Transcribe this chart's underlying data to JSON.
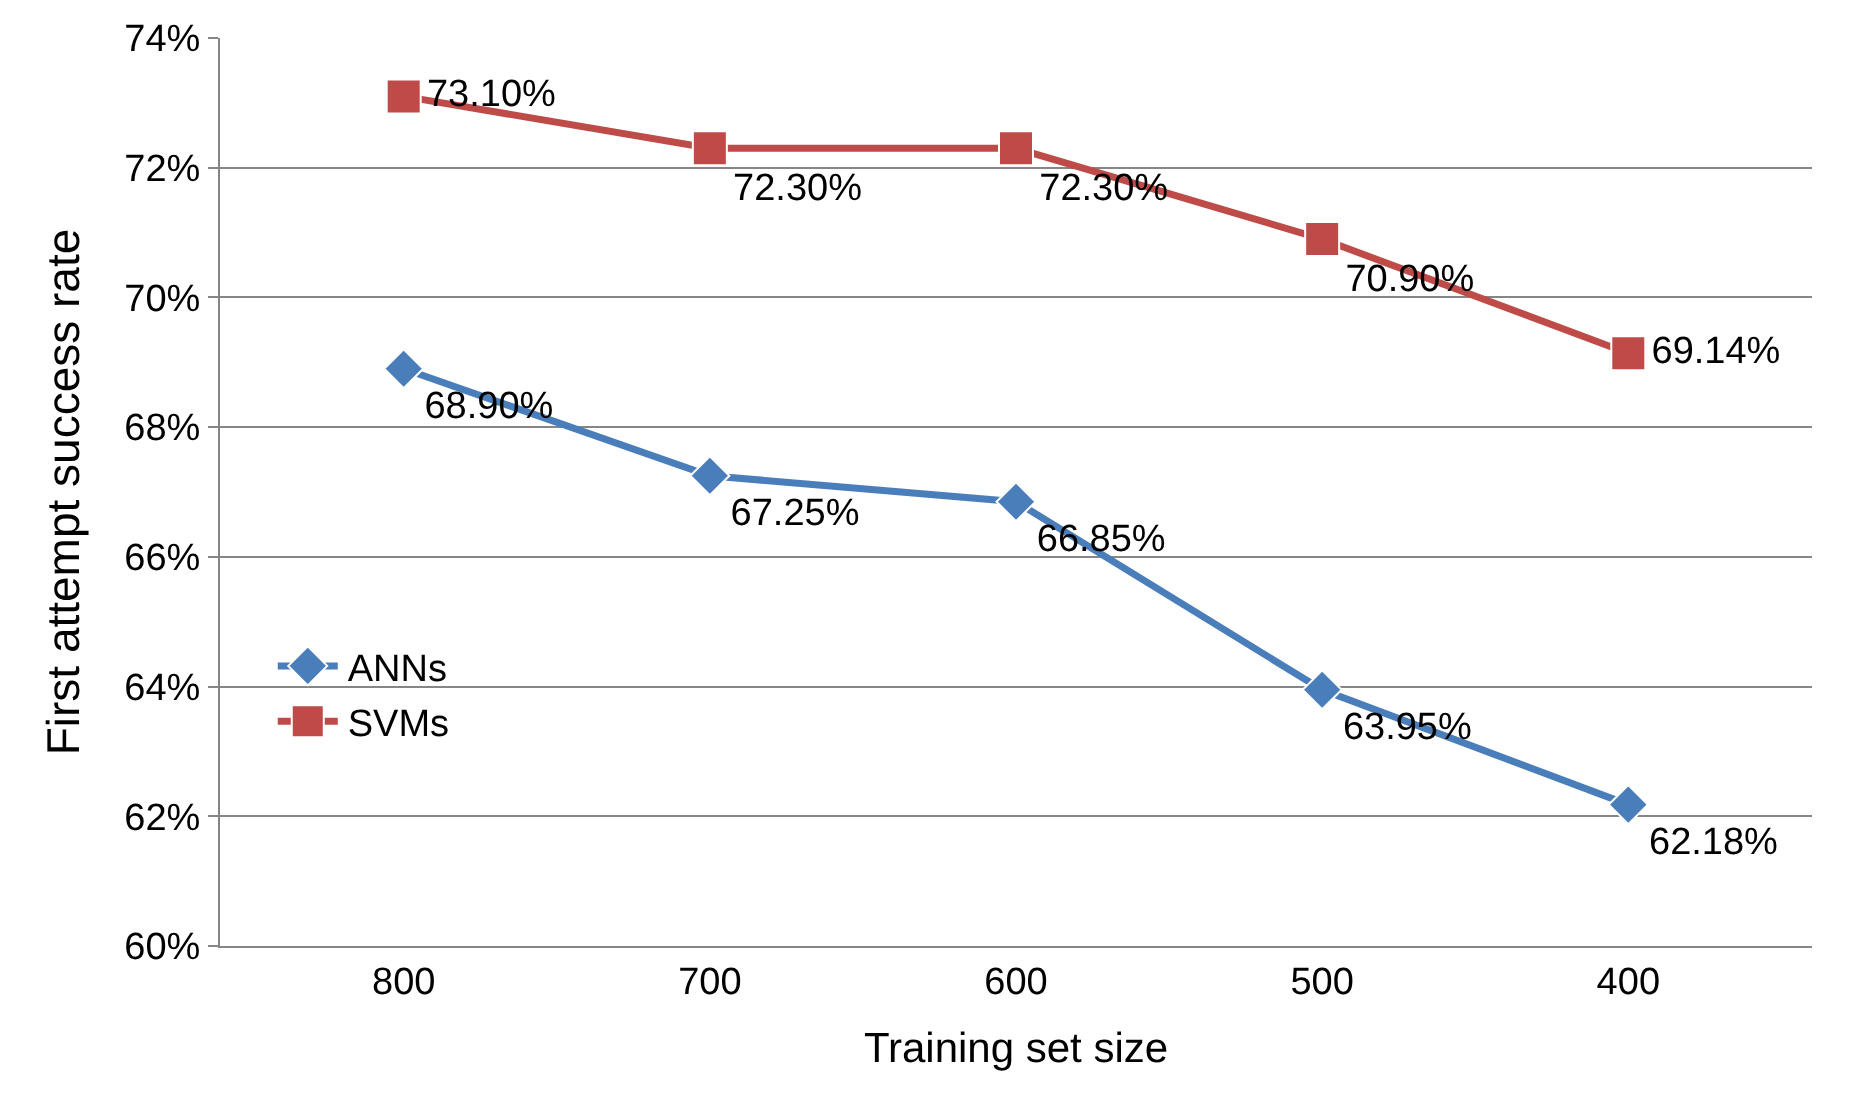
{
  "chart_data": {
    "type": "line",
    "xlabel": "Training set size",
    "ylabel": "First attempt success rate",
    "categories": [
      "800",
      "700",
      "600",
      "500",
      "400"
    ],
    "series": [
      {
        "name": "ANNs",
        "color": "#4a7ebb",
        "marker": "diamond",
        "values": [
          68.9,
          67.25,
          66.85,
          63.95,
          62.18
        ],
        "value_labels": [
          "68.90%",
          "67.25%",
          "66.85%",
          "63.95%",
          "62.18%"
        ]
      },
      {
        "name": "SVMs",
        "color": "#be4b48",
        "marker": "square",
        "values": [
          73.1,
          72.3,
          72.3,
          70.9,
          69.14
        ],
        "value_labels": [
          "73.10%",
          "72.30%",
          "72.30%",
          "70.90%",
          "69.14%"
        ]
      }
    ],
    "ylim": [
      60,
      74
    ],
    "yticks": [
      {
        "value": 60,
        "label": "60%"
      },
      {
        "value": 62,
        "label": "62%"
      },
      {
        "value": 64,
        "label": "64%"
      },
      {
        "value": 66,
        "label": "66%"
      },
      {
        "value": 68,
        "label": "68%"
      },
      {
        "value": 70,
        "label": "70%"
      },
      {
        "value": 72,
        "label": "72%"
      },
      {
        "value": 74,
        "label": "74%"
      }
    ],
    "grid": "y",
    "legend": "bottom left",
    "line_style": "solid"
  }
}
